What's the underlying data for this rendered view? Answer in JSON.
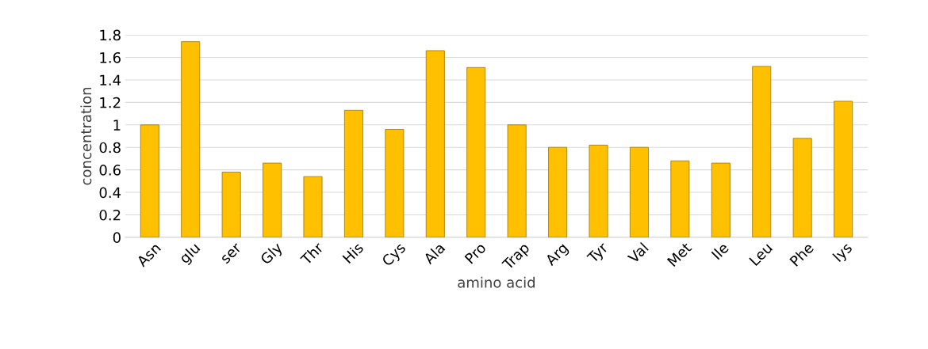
{
  "chart_data": {
    "type": "bar",
    "xlabel": "amino acid",
    "ylabel": "concentration",
    "categories": [
      "Asn",
      "glu",
      "ser",
      "Gly",
      "Thr",
      "His",
      "Cys",
      "Ala",
      "Pro",
      "Trap",
      "Arg",
      "Tyr",
      "Val",
      "Met",
      "Ile",
      "Leu",
      "Phe",
      "lys"
    ],
    "values": [
      1.0,
      1.74,
      0.58,
      0.66,
      0.54,
      1.13,
      0.96,
      1.66,
      1.51,
      1.0,
      0.8,
      0.82,
      0.8,
      0.68,
      0.66,
      1.52,
      0.88,
      1.21
    ],
    "color": "#ffc000",
    "ylim": [
      0,
      1.8
    ],
    "yticks": [
      0,
      0.2,
      0.4,
      0.6,
      0.8,
      1,
      1.2,
      1.4,
      1.6,
      1.8
    ],
    "grid": "y"
  }
}
